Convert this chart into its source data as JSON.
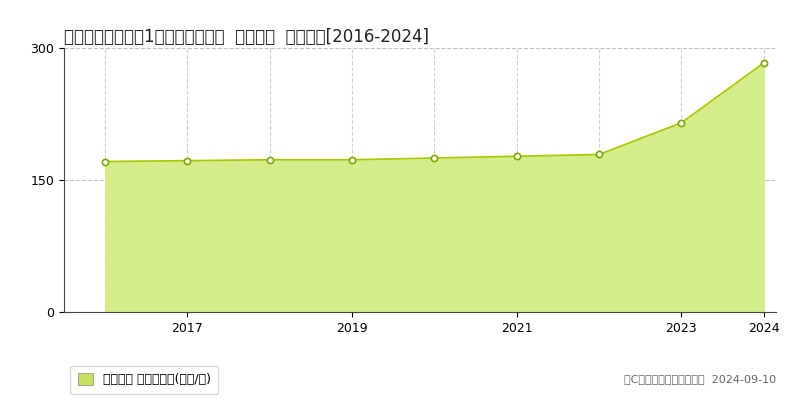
{
  "title": "兵庫県尼崎市潮水1丁目８１４番外  地価公示  地価推移[2016-2024]",
  "years": [
    2016,
    2017,
    2018,
    2019,
    2020,
    2021,
    2022,
    2023,
    2024
  ],
  "values": [
    171,
    172,
    173,
    173,
    175,
    177,
    179,
    215,
    283
  ],
  "ylim_min": 0,
  "ylim_max": 300,
  "yticks": [
    0,
    150,
    300
  ],
  "fill_color": "#d4ed8a",
  "line_color": "#a8c800",
  "marker_face": "#ffffff",
  "marker_edge": "#7aaa00",
  "bg_color": "#ffffff",
  "plot_bg_color": "#ffffff",
  "grid_h_color": "#bbbbbb",
  "grid_v_color": "#cccccc",
  "legend_label": "地価公示 平均坪単価(万円/坪)",
  "copyright_text": "（C）土地価格ドットコム  2024-09-10",
  "title_fontsize": 12,
  "tick_fontsize": 9,
  "legend_fontsize": 9,
  "copyright_fontsize": 8,
  "legend_square_color": "#c8e060"
}
